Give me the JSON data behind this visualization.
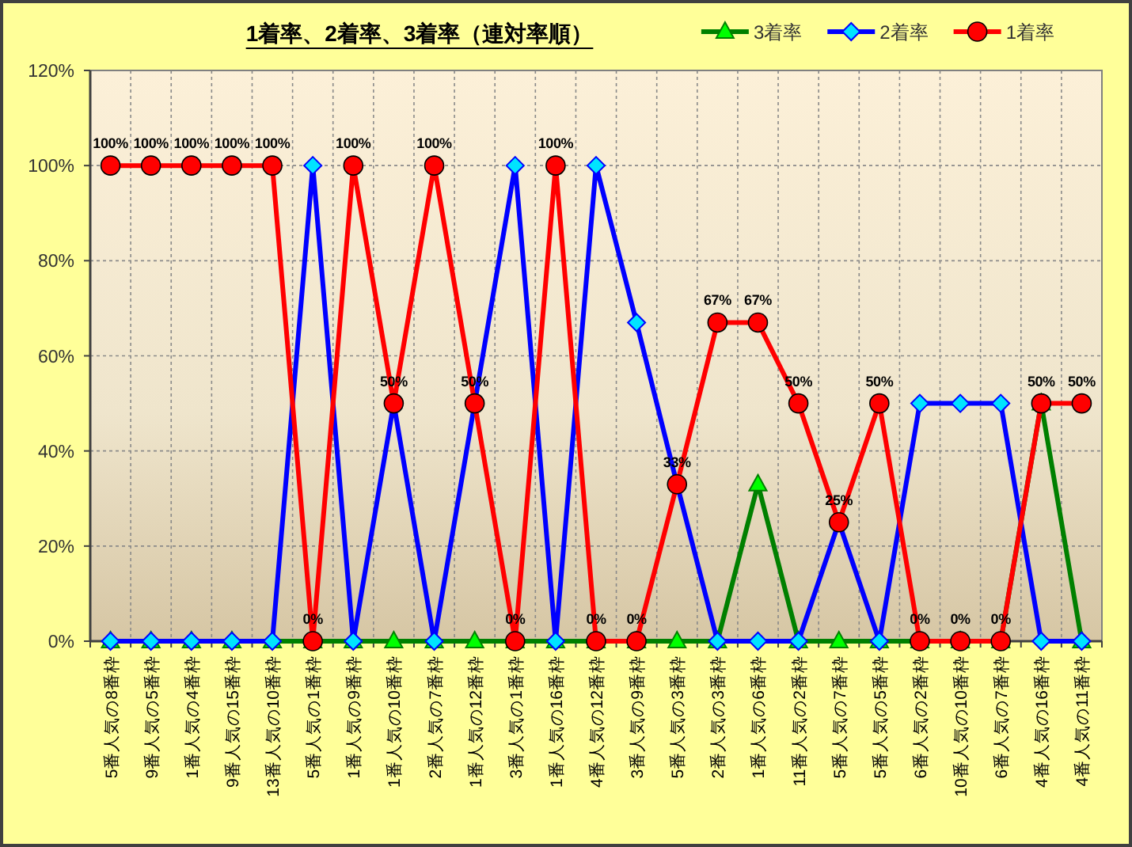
{
  "chart_data": {
    "type": "line",
    "title": "1着率、2着率、3着率（連対率順）",
    "categories": [
      "5番人気の8番枠",
      "9番人気の5番枠",
      "1番人気の4番枠",
      "9番人気の15番枠",
      "13番人気の10番枠",
      "5番人気の1番枠",
      "1番人気の9番枠",
      "1番人気の10番枠",
      "2番人気の7番枠",
      "1番人気の12番枠",
      "3番人気の1番枠",
      "1番人気の16番枠",
      "4番人気の12番枠",
      "3番人気の9番枠",
      "5番人気の3番枠",
      "2番人気の3番枠",
      "1番人気の6番枠",
      "11番人気の2番枠",
      "5番人気の7番枠",
      "5番人気の5番枠",
      "6番人気の2番枠",
      "10番人気の10番枠",
      "6番人気の7番枠",
      "4番人気の16番枠",
      "4番人気の11番枠"
    ],
    "series": [
      {
        "name": "3着率",
        "color": "#008000",
        "marker": "triangle",
        "values": [
          0,
          0,
          0,
          0,
          0,
          0,
          0,
          0,
          0,
          0,
          0,
          0,
          0,
          0,
          0,
          0,
          33,
          0,
          0,
          0,
          0,
          0,
          0,
          50,
          0
        ]
      },
      {
        "name": "2着率",
        "color": "#0000ff",
        "marker": "diamond",
        "values": [
          0,
          0,
          0,
          0,
          0,
          100,
          0,
          50,
          0,
          50,
          100,
          0,
          100,
          67,
          33,
          0,
          0,
          0,
          25,
          0,
          50,
          50,
          50,
          0,
          0
        ]
      },
      {
        "name": "1着率",
        "color": "#ff0000",
        "marker": "circle",
        "values": [
          100,
          100,
          100,
          100,
          100,
          0,
          100,
          50,
          100,
          50,
          0,
          100,
          0,
          0,
          33,
          67,
          67,
          50,
          25,
          50,
          0,
          0,
          0,
          50,
          50
        ],
        "value_labels": [
          "100%",
          "100%",
          "100%",
          "100%",
          "100%",
          "0%",
          "100%",
          "50%",
          "100%",
          "50%",
          "0%",
          "100%",
          "0%",
          "0%",
          "33%",
          "67%",
          "67%",
          "50%",
          "25%",
          "50%",
          "0%",
          "0%",
          "0%",
          "50%",
          "50%"
        ]
      }
    ],
    "ylim": [
      0,
      120
    ],
    "yticks": [
      {
        "value": 0,
        "label": "0%"
      },
      {
        "value": 20,
        "label": "20%"
      },
      {
        "value": 40,
        "label": "40%"
      },
      {
        "value": 60,
        "label": "60%"
      },
      {
        "value": 80,
        "label": "80%"
      },
      {
        "value": 100,
        "label": "100%"
      },
      {
        "value": 120,
        "label": "120%"
      }
    ],
    "grid": true,
    "legend": "top right",
    "line_style": "solid"
  }
}
